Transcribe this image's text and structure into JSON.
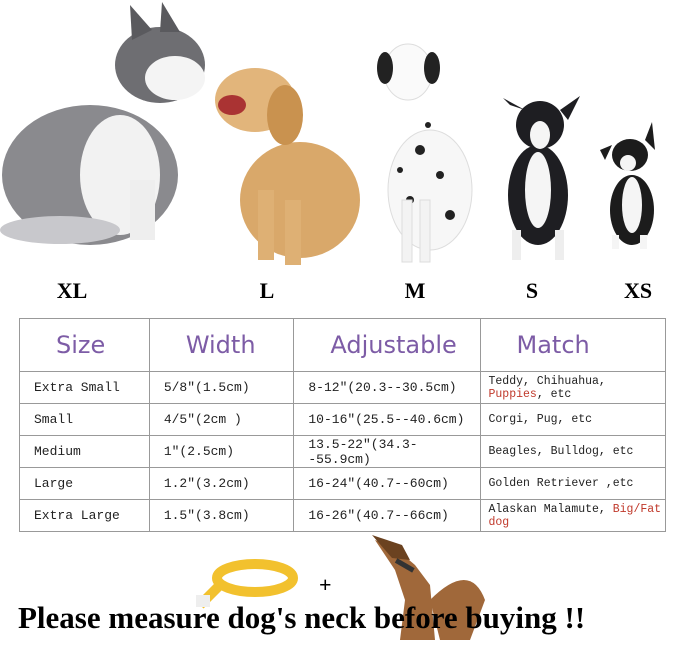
{
  "sizes": [
    "XL",
    "L",
    "M",
    "S",
    "XS"
  ],
  "table": {
    "headers": [
      "Size",
      "Width",
      "Adjustable",
      "Match"
    ],
    "rows": [
      [
        "Extra Small",
        "5/8″(1.5cm)",
        "8-12″(20.3--30.5cm)"
      ],
      [
        "Small",
        "4/5″(2cm )",
        "10-16″(25.5--40.6cm)"
      ],
      [
        "Medium",
        "1″(2.5cm)",
        "13.5-22″(34.3--55.9cm)"
      ],
      [
        "Large",
        "1.2″(3.2cm)",
        "16-24″(40.7--60cm)"
      ],
      [
        "Extra Large",
        "1.5″(3.8cm)",
        "16-26″(40.7--66cm)"
      ]
    ],
    "match": [
      [
        {
          "text": "Teddy, Chihuahua, "
        },
        {
          "text": "Puppies",
          "color": "#c0392b"
        },
        {
          "text": ", etc"
        }
      ],
      [
        {
          "text": "Corgi, Pug, etc"
        }
      ],
      [
        {
          "text": "Beagles, Bulldog, etc"
        }
      ],
      [
        {
          "text": "Golden Retriever ,etc"
        }
      ],
      [
        {
          "text": "Alaskan Malamute, "
        },
        {
          "text": "Big/Fat dog",
          "color": "#c0392b"
        }
      ]
    ]
  },
  "plus": "+",
  "footer": "Please measure dog's neck before buying !!"
}
